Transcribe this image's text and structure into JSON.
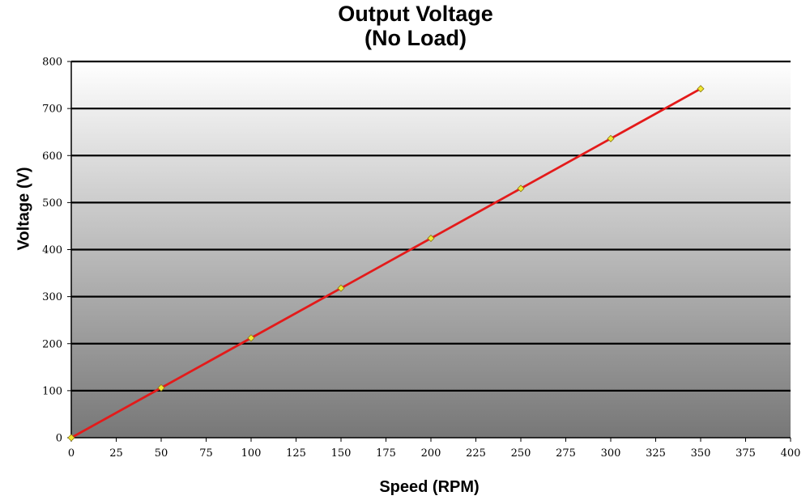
{
  "chart_data": {
    "type": "line",
    "title_lines": [
      "Output Voltage",
      "(No Load)"
    ],
    "xlabel": "Speed (RPM)",
    "ylabel": "Voltage (V)",
    "xlim": [
      0,
      400
    ],
    "ylim": [
      0,
      800
    ],
    "x_ticks": [
      0,
      25,
      50,
      75,
      100,
      125,
      150,
      175,
      200,
      225,
      250,
      275,
      300,
      325,
      350,
      375,
      400
    ],
    "y_ticks": [
      0,
      100,
      200,
      300,
      400,
      500,
      600,
      700,
      800
    ],
    "grid": "horizontal",
    "legend": "none",
    "series": [
      {
        "x": [
          0,
          50,
          100,
          150,
          200,
          250,
          300,
          350
        ],
        "y": [
          0,
          106,
          212,
          318,
          424,
          530,
          636,
          742
        ]
      }
    ],
    "colors": {
      "line": "#e41a1a",
      "marker_fill": "#f2e832",
      "marker_stroke": "#8a7a10",
      "gradient_top": "#ffffff",
      "gradient_bottom": "#777777",
      "gridline": "#000000"
    }
  }
}
